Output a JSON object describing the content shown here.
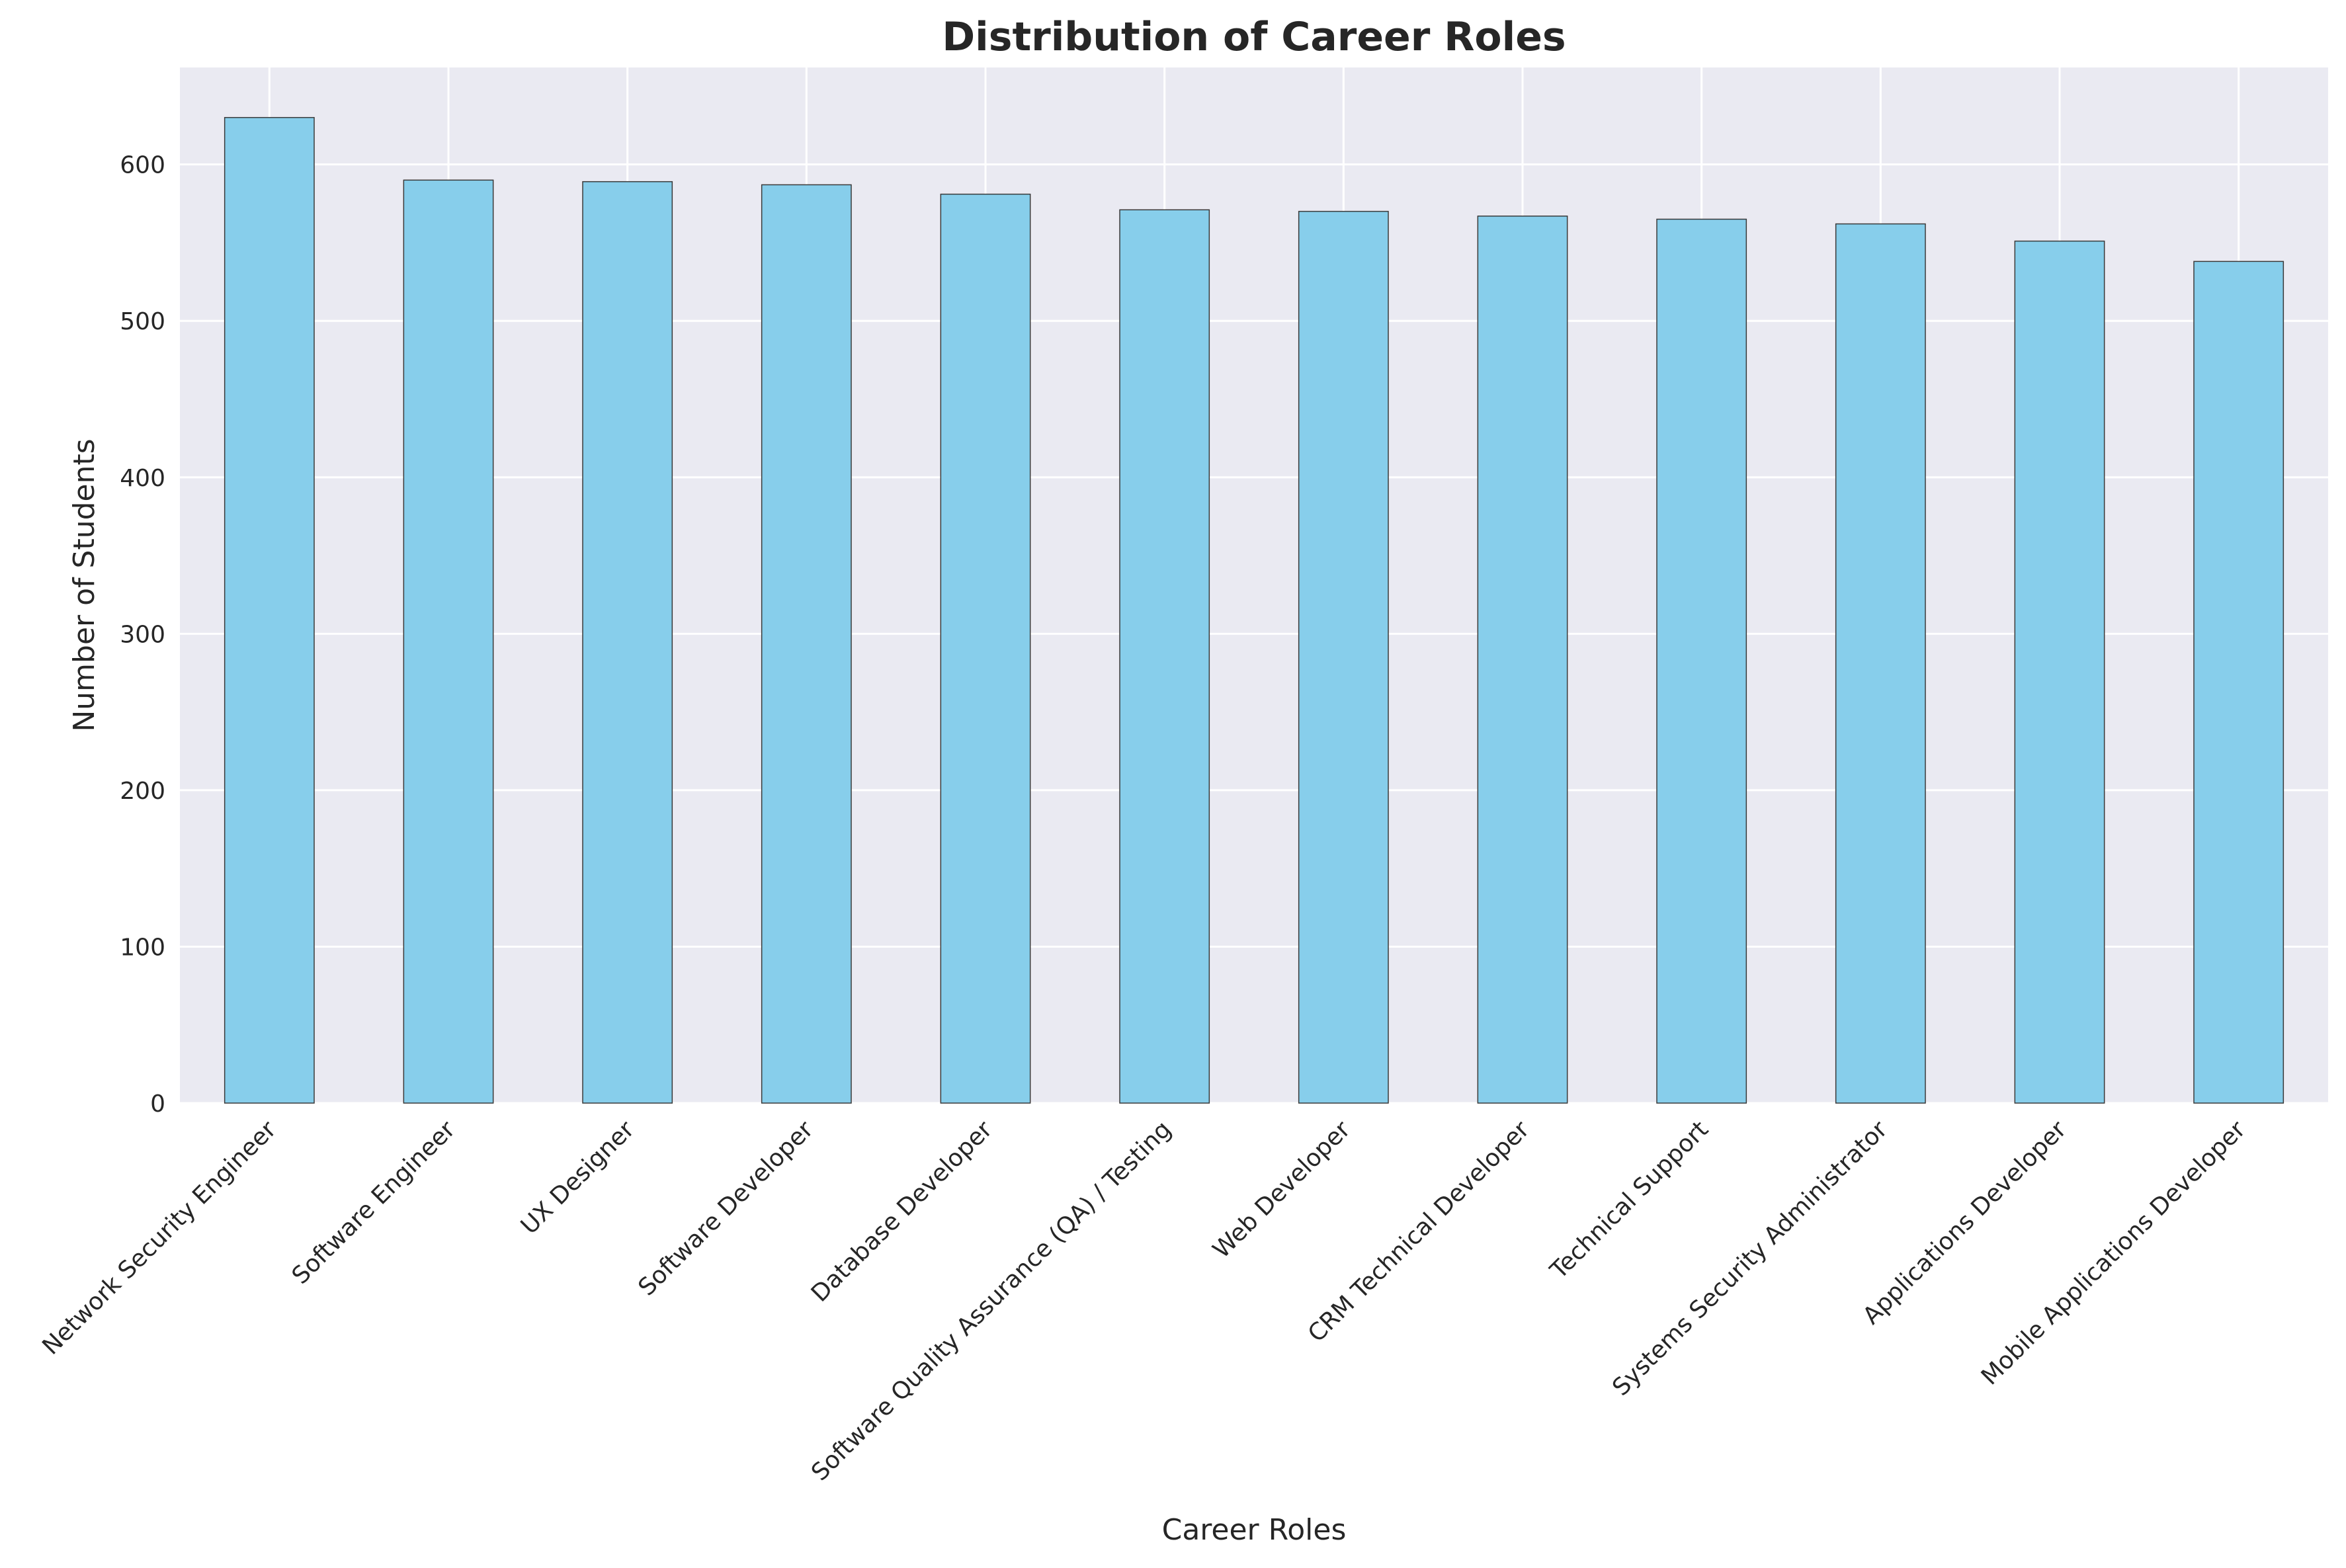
{
  "chart_data": {
    "type": "bar",
    "title": "Distribution of Career Roles",
    "xlabel": "Career Roles",
    "ylabel": "Number of Students",
    "categories": [
      "Network Security Engineer",
      "Software Engineer",
      "UX Designer",
      "Software Developer",
      "Database Developer",
      "Software Quality Assurance (QA) / Testing",
      "Web Developer",
      "CRM Technical Developer",
      "Technical Support",
      "Systems Security Administrator",
      "Applications Developer",
      "Mobile Applications Developer"
    ],
    "values": [
      630,
      590,
      589,
      587,
      581,
      571,
      570,
      567,
      565,
      562,
      551,
      538
    ],
    "ylim": [
      0,
      662
    ],
    "yticks": [
      0,
      100,
      200,
      300,
      400,
      500,
      600
    ],
    "grid": true,
    "legend": "none",
    "colors": {
      "bar_fill": "#87ceeb",
      "bar_edge": "#3a3a3a",
      "plot_background": "#eaeaf2",
      "grid": "#ffffff"
    }
  }
}
